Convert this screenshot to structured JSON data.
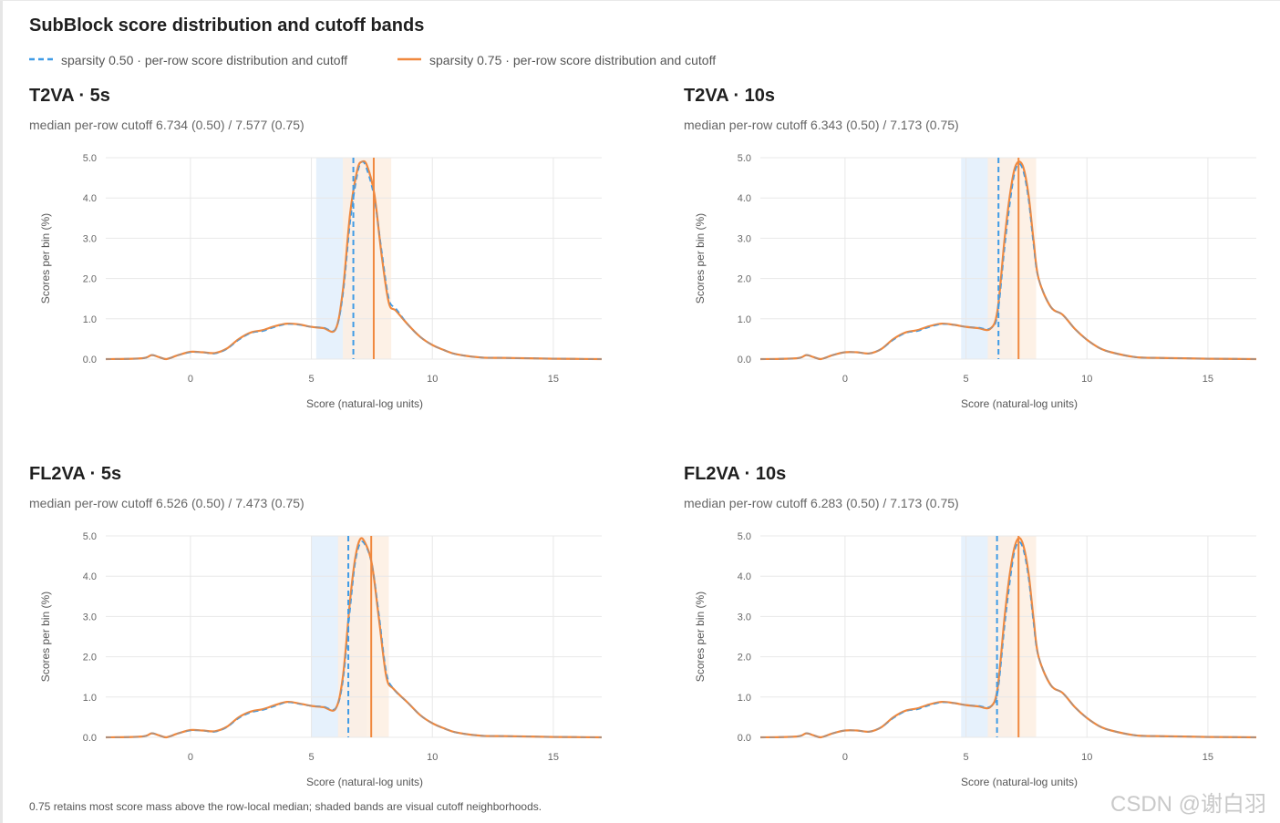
{
  "title": "SubBlock score distribution and cutoff bands",
  "legend": [
    {
      "label": "sparsity 0.50 · per-row score distribution and cutoff",
      "color": "#3f9be6",
      "style": "dashed"
    },
    {
      "label": "sparsity 0.75 · per-row score distribution and cutoff",
      "color": "#f0883e",
      "style": "solid"
    }
  ],
  "footnote": "0.75 retains most score mass above the row-local median; shaded bands are visual cutoff neighborhoods.",
  "watermark": "CSDN @谢白羽",
  "colors": {
    "series_050": "#3f9be6",
    "series_075": "#f0883e",
    "band_050": "#e6f1fc",
    "band_075": "#fdeee2",
    "grid": "#e8e8e8",
    "tick_text": "#666666"
  },
  "chart_data": [
    {
      "type": "line",
      "title": "T2VA · 5s",
      "subtitle": "median per-row cutoff 6.734 (0.50) / 7.577 (0.75)",
      "xlabel": "Score (natural-log units)",
      "ylabel": "Scores per bin (%)",
      "xlim": [
        -3.5,
        17
      ],
      "ylim": [
        0,
        5
      ],
      "xticks": [
        "0",
        "5",
        "10",
        "15"
      ],
      "yticks": [
        "0.0",
        "1.0",
        "2.0",
        "3.0",
        "4.0",
        "5.0"
      ],
      "grid": true,
      "cutoffs": {
        "s050": 6.734,
        "s075": 7.577
      },
      "bands": {
        "s050": [
          5.2,
          7.5
        ],
        "s075": [
          6.3,
          8.3
        ]
      },
      "x": [
        -3.5,
        -2.0,
        -1.6,
        -1.3,
        -1.0,
        -0.5,
        0,
        0.5,
        1.0,
        1.5,
        2.0,
        2.5,
        3.0,
        3.5,
        4.0,
        4.5,
        5.0,
        5.5,
        6.0,
        6.3,
        6.6,
        6.9,
        7.1,
        7.3,
        7.6,
        7.9,
        8.2,
        8.5,
        9.0,
        9.5,
        10.0,
        10.5,
        11.0,
        12.0,
        13.0,
        14.0,
        15.0,
        17.0
      ],
      "series": [
        {
          "name": "sparsity 0.50",
          "values": [
            0.0,
            0.02,
            0.1,
            0.05,
            0.0,
            0.1,
            0.17,
            0.17,
            0.14,
            0.25,
            0.48,
            0.65,
            0.7,
            0.8,
            0.87,
            0.85,
            0.8,
            0.78,
            0.75,
            1.6,
            3.4,
            4.6,
            4.9,
            4.7,
            4.0,
            2.7,
            1.5,
            1.25,
            0.85,
            0.55,
            0.35,
            0.22,
            0.12,
            0.04,
            0.03,
            0.02,
            0.01,
            0.0
          ]
        },
        {
          "name": "sparsity 0.75",
          "values": [
            0.0,
            0.02,
            0.1,
            0.05,
            0.0,
            0.1,
            0.18,
            0.17,
            0.15,
            0.26,
            0.5,
            0.66,
            0.72,
            0.82,
            0.88,
            0.86,
            0.8,
            0.77,
            0.74,
            1.7,
            3.6,
            4.7,
            4.9,
            4.8,
            4.1,
            2.6,
            1.4,
            1.2,
            0.85,
            0.55,
            0.35,
            0.22,
            0.12,
            0.04,
            0.03,
            0.02,
            0.01,
            0.0
          ]
        }
      ]
    },
    {
      "type": "line",
      "title": "T2VA · 10s",
      "subtitle": "median per-row cutoff 6.343 (0.50) / 7.173 (0.75)",
      "xlabel": "Score (natural-log units)",
      "ylabel": "Scores per bin (%)",
      "xlim": [
        -3.5,
        17
      ],
      "ylim": [
        0,
        5
      ],
      "xticks": [
        "0",
        "5",
        "10",
        "15"
      ],
      "yticks": [
        "0.0",
        "1.0",
        "2.0",
        "3.0",
        "4.0",
        "5.0"
      ],
      "grid": true,
      "cutoffs": {
        "s050": 6.343,
        "s075": 7.173
      },
      "bands": {
        "s050": [
          4.8,
          6.9
        ],
        "s075": [
          5.9,
          7.9
        ]
      },
      "x": [
        -3.5,
        -2.0,
        -1.6,
        -1.3,
        -1.0,
        -0.5,
        0,
        0.5,
        1.0,
        1.5,
        2.0,
        2.5,
        3.0,
        3.5,
        4.0,
        4.5,
        5.0,
        5.5,
        6.0,
        6.3,
        6.6,
        6.8,
        7.0,
        7.2,
        7.4,
        7.6,
        7.8,
        8.0,
        8.5,
        9.0,
        9.5,
        10.0,
        10.5,
        11.0,
        12.0,
        13.0,
        14.0,
        15.0,
        17.0
      ],
      "series": [
        {
          "name": "sparsity 0.50",
          "values": [
            0.0,
            0.02,
            0.1,
            0.05,
            0.0,
            0.1,
            0.17,
            0.17,
            0.14,
            0.25,
            0.48,
            0.65,
            0.7,
            0.8,
            0.87,
            0.85,
            0.8,
            0.78,
            0.76,
            1.1,
            2.8,
            3.8,
            4.6,
            4.85,
            4.6,
            3.9,
            2.8,
            2.0,
            1.3,
            1.1,
            0.75,
            0.48,
            0.28,
            0.17,
            0.05,
            0.03,
            0.02,
            0.01,
            0.0
          ]
        },
        {
          "name": "sparsity 0.75",
          "values": [
            0.0,
            0.02,
            0.1,
            0.05,
            0.0,
            0.1,
            0.17,
            0.17,
            0.14,
            0.25,
            0.5,
            0.66,
            0.72,
            0.82,
            0.88,
            0.85,
            0.8,
            0.77,
            0.75,
            1.2,
            3.0,
            4.0,
            4.7,
            4.9,
            4.7,
            4.0,
            2.9,
            2.0,
            1.3,
            1.1,
            0.75,
            0.48,
            0.28,
            0.17,
            0.05,
            0.03,
            0.02,
            0.01,
            0.0
          ]
        }
      ]
    },
    {
      "type": "line",
      "title": "FL2VA · 5s",
      "subtitle": "median per-row cutoff 6.526 (0.50) / 7.473 (0.75)",
      "xlabel": "Score (natural-log units)",
      "ylabel": "Scores per bin (%)",
      "xlim": [
        -3.5,
        17
      ],
      "ylim": [
        0,
        5
      ],
      "xticks": [
        "0",
        "5",
        "10",
        "15"
      ],
      "yticks": [
        "0.0",
        "1.0",
        "2.0",
        "3.0",
        "4.0",
        "5.0"
      ],
      "grid": true,
      "cutoffs": {
        "s050": 6.526,
        "s075": 7.473
      },
      "bands": {
        "s050": [
          5.0,
          7.3
        ],
        "s075": [
          6.1,
          8.2
        ]
      },
      "x": [
        -3.5,
        -2.0,
        -1.6,
        -1.3,
        -1.0,
        -0.5,
        0,
        0.5,
        1.0,
        1.5,
        2.0,
        2.5,
        3.0,
        3.5,
        4.0,
        4.5,
        5.0,
        5.5,
        6.0,
        6.3,
        6.6,
        6.8,
        7.0,
        7.2,
        7.5,
        7.8,
        8.1,
        8.4,
        9.0,
        9.5,
        10.0,
        10.5,
        11.0,
        12.0,
        13.0,
        14.0,
        15.0,
        17.0
      ],
      "series": [
        {
          "name": "sparsity 0.50",
          "values": [
            0.0,
            0.02,
            0.1,
            0.05,
            0.0,
            0.1,
            0.17,
            0.17,
            0.14,
            0.25,
            0.48,
            0.62,
            0.68,
            0.78,
            0.87,
            0.83,
            0.78,
            0.76,
            0.72,
            1.4,
            3.2,
            4.3,
            4.8,
            4.8,
            4.3,
            3.0,
            1.6,
            1.2,
            0.85,
            0.55,
            0.35,
            0.22,
            0.12,
            0.04,
            0.03,
            0.02,
            0.01,
            0.0
          ]
        },
        {
          "name": "sparsity 0.75",
          "values": [
            0.0,
            0.02,
            0.1,
            0.05,
            0.0,
            0.1,
            0.18,
            0.17,
            0.15,
            0.26,
            0.5,
            0.64,
            0.7,
            0.8,
            0.88,
            0.84,
            0.78,
            0.75,
            0.71,
            1.5,
            3.4,
            4.4,
            4.9,
            4.85,
            4.3,
            2.9,
            1.5,
            1.2,
            0.85,
            0.55,
            0.35,
            0.22,
            0.12,
            0.04,
            0.03,
            0.02,
            0.01,
            0.0
          ]
        }
      ]
    },
    {
      "type": "line",
      "title": "FL2VA · 10s",
      "subtitle": "median per-row cutoff 6.283 (0.50) / 7.173 (0.75)",
      "xlabel": "Score (natural-log units)",
      "ylabel": "Scores per bin (%)",
      "xlim": [
        -3.5,
        17
      ],
      "ylim": [
        0,
        5
      ],
      "xticks": [
        "0",
        "5",
        "10",
        "15"
      ],
      "yticks": [
        "0.0",
        "1.0",
        "2.0",
        "3.0",
        "4.0",
        "5.0"
      ],
      "grid": true,
      "cutoffs": {
        "s050": 6.283,
        "s075": 7.173
      },
      "bands": {
        "s050": [
          4.8,
          6.9
        ],
        "s075": [
          5.9,
          7.9
        ]
      },
      "x": [
        -3.5,
        -2.0,
        -1.6,
        -1.3,
        -1.0,
        -0.5,
        0,
        0.5,
        1.0,
        1.5,
        2.0,
        2.5,
        3.0,
        3.5,
        4.0,
        4.5,
        5.0,
        5.5,
        6.0,
        6.3,
        6.6,
        6.8,
        7.0,
        7.2,
        7.4,
        7.6,
        7.8,
        8.0,
        8.5,
        9.0,
        9.5,
        10.0,
        10.5,
        11.0,
        12.0,
        13.0,
        14.0,
        15.0,
        17.0
      ],
      "series": [
        {
          "name": "sparsity 0.50",
          "values": [
            0.0,
            0.02,
            0.1,
            0.05,
            0.0,
            0.1,
            0.17,
            0.17,
            0.14,
            0.25,
            0.48,
            0.65,
            0.7,
            0.8,
            0.87,
            0.85,
            0.8,
            0.78,
            0.76,
            1.1,
            2.8,
            3.8,
            4.6,
            4.85,
            4.6,
            3.9,
            2.8,
            2.0,
            1.3,
            1.1,
            0.75,
            0.48,
            0.28,
            0.17,
            0.05,
            0.03,
            0.02,
            0.01,
            0.0
          ]
        },
        {
          "name": "sparsity 0.75",
          "values": [
            0.0,
            0.02,
            0.1,
            0.05,
            0.0,
            0.1,
            0.17,
            0.17,
            0.14,
            0.25,
            0.5,
            0.66,
            0.72,
            0.82,
            0.88,
            0.85,
            0.8,
            0.77,
            0.75,
            1.2,
            3.0,
            4.0,
            4.7,
            4.95,
            4.7,
            4.0,
            2.9,
            2.0,
            1.3,
            1.1,
            0.75,
            0.48,
            0.28,
            0.17,
            0.05,
            0.03,
            0.02,
            0.01,
            0.0
          ]
        }
      ]
    }
  ]
}
